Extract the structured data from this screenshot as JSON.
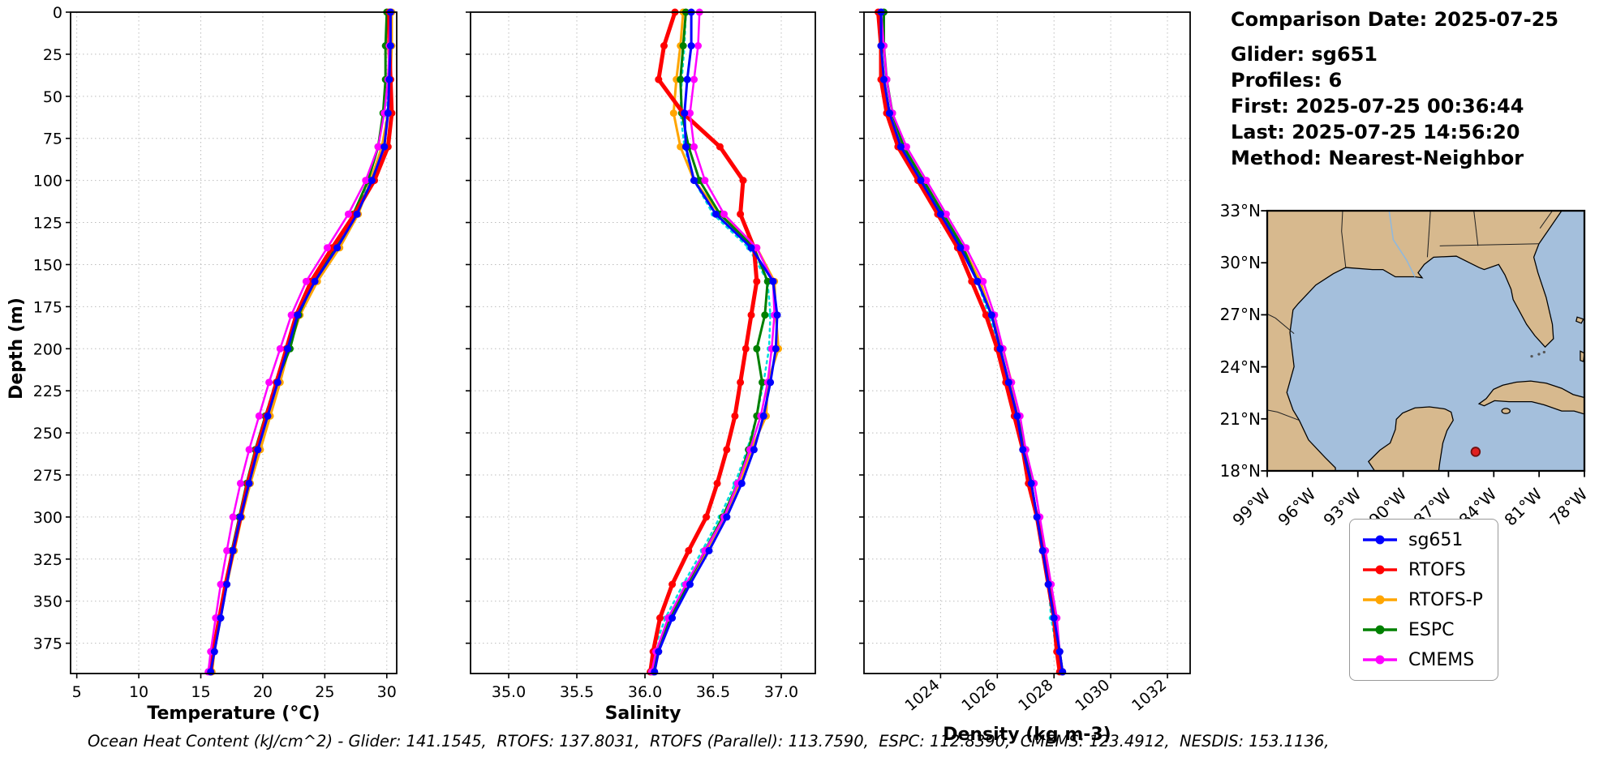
{
  "info": {
    "comparison_date": "Comparison Date: 2025-07-25",
    "glider": "Glider: sg651",
    "profiles": "Profiles: 6",
    "first": "First: 2025-07-25 00:36:44",
    "last": "Last: 2025-07-25 14:56:20",
    "method": "Method: Nearest-Neighbor"
  },
  "footer": "Ocean Heat Content (kJ/cm^2) - Glider: 141.1545,  RTOFS: 137.8031,  RTOFS (Parallel): 113.7590,  ESPC: 112.8390,  CMEMS: 123.4912,  NESDIS: 153.1136,",
  "legend": {
    "items": [
      {
        "label": "sg651",
        "color": "#0000ff"
      },
      {
        "label": "RTOFS",
        "color": "#ff0000"
      },
      {
        "label": "RTOFS-P",
        "color": "#ffa500"
      },
      {
        "label": "ESPC",
        "color": "#008000"
      },
      {
        "label": "CMEMS",
        "color": "#ff00ff"
      }
    ]
  },
  "map": {
    "lat_ticks": [
      "33°N",
      "30°N",
      "27°N",
      "24°N",
      "21°N",
      "18°N"
    ],
    "lon_ticks": [
      "99°W",
      "96°W",
      "93°W",
      "90°W",
      "87°W",
      "84°W",
      "81°W",
      "78°W"
    ],
    "lon_range_w": [
      99,
      78
    ],
    "lat_range_n": [
      18,
      33
    ],
    "marker": {
      "lon_w": 85.2,
      "lat_n": 19.1,
      "color": "#e02020",
      "edge": "#701010"
    },
    "land_color": "#d7b98e",
    "ocean_color": "#a4bfdc"
  },
  "series_styles": {
    "sg651": {
      "color": "#0000ff",
      "width": 3,
      "marker": 4.5
    },
    "RTOFS": {
      "color": "#ff0000",
      "width": 5,
      "marker": 4.5
    },
    "RTOFS-P": {
      "color": "#ffa500",
      "width": 3,
      "marker": 4.5
    },
    "ESPC": {
      "color": "#008000",
      "width": 3,
      "marker": 4.5
    },
    "CMEMS": {
      "color": "#ff00ff",
      "width": 2.5,
      "marker": 4.5
    },
    "NESDIS": {
      "color": "#00dddd",
      "width": 2.5,
      "marker": 3,
      "dash": "3 5"
    }
  },
  "chart_data": [
    {
      "type": "line",
      "title": "",
      "xlabel": "Temperature (°C)",
      "ylabel": "Depth (m)",
      "xlim": [
        4.5,
        30.8
      ],
      "ylim": [
        0,
        393
      ],
      "grid": true,
      "xticks": [
        5,
        10,
        15,
        20,
        25,
        30
      ],
      "xtick_labels": [
        "5",
        "10",
        "15",
        "20",
        "25",
        "30"
      ],
      "yticks": [
        0,
        25,
        50,
        75,
        100,
        125,
        150,
        175,
        200,
        225,
        250,
        275,
        300,
        325,
        350,
        375
      ],
      "depths": [
        0,
        20,
        40,
        60,
        80,
        100,
        120,
        140,
        160,
        180,
        200,
        220,
        240,
        260,
        280,
        300,
        320,
        340,
        360,
        380,
        392
      ],
      "series": [
        {
          "name": "NESDIS",
          "values": [
            30.3,
            30.3,
            30.2,
            30.0,
            29.7,
            28.7,
            27.4,
            25.8,
            24.0,
            22.7,
            21.9,
            21.0,
            20.2,
            19.4,
            18.7,
            18.1,
            17.5,
            17.0,
            16.5,
            16.0,
            15.7
          ]
        },
        {
          "name": "RTOFS-P",
          "values": [
            30.4,
            30.4,
            30.3,
            30.1,
            29.6,
            28.7,
            27.7,
            26.2,
            24.4,
            23.0,
            22.1,
            21.4,
            20.6,
            19.8,
            19.0,
            18.3,
            17.7,
            17.1,
            16.6,
            16.1,
            15.9
          ]
        },
        {
          "name": "ESPC",
          "values": [
            30.0,
            29.9,
            29.9,
            29.7,
            29.3,
            28.5,
            27.3,
            25.8,
            24.1,
            22.9,
            22.2,
            21.1,
            20.2,
            19.4,
            18.7,
            18.1,
            17.5,
            17.0,
            16.5,
            16.0,
            15.8
          ]
        },
        {
          "name": "RTOFS",
          "values": [
            30.2,
            30.2,
            30.3,
            30.4,
            30.1,
            29.0,
            27.4,
            25.6,
            23.9,
            22.7,
            21.9,
            21.1,
            20.3,
            19.5,
            18.8,
            18.2,
            17.6,
            17.0,
            16.5,
            16.0,
            15.8
          ]
        },
        {
          "name": "CMEMS",
          "values": [
            30.3,
            30.2,
            30.1,
            29.8,
            29.3,
            28.3,
            26.9,
            25.2,
            23.5,
            22.3,
            21.4,
            20.5,
            19.7,
            18.9,
            18.2,
            17.6,
            17.1,
            16.6,
            16.2,
            15.8,
            15.6
          ]
        },
        {
          "name": "sg651",
          "values": [
            30.3,
            30.3,
            30.2,
            30.1,
            29.8,
            28.8,
            27.6,
            26.0,
            24.2,
            22.8,
            22.0,
            21.2,
            20.4,
            19.6,
            18.9,
            18.2,
            17.6,
            17.1,
            16.6,
            16.1,
            15.8
          ]
        }
      ]
    },
    {
      "type": "line",
      "title": "",
      "xlabel": "Salinity",
      "ylabel": "",
      "xlim": [
        34.72,
        37.25
      ],
      "ylim": [
        0,
        393
      ],
      "grid": true,
      "xticks": [
        35.0,
        35.5,
        36.0,
        36.5,
        37.0
      ],
      "xtick_labels": [
        "35.0",
        "35.5",
        "36.0",
        "36.5",
        "37.0"
      ],
      "yticks": [
        0,
        25,
        50,
        75,
        100,
        125,
        150,
        175,
        200,
        225,
        250,
        275,
        300,
        325,
        350,
        375
      ],
      "depths": [
        0,
        20,
        40,
        60,
        80,
        100,
        120,
        140,
        160,
        180,
        200,
        220,
        240,
        260,
        280,
        300,
        320,
        340,
        360,
        380,
        392
      ],
      "series": [
        {
          "name": "NESDIS",
          "values": [
            36.3,
            36.29,
            36.27,
            36.26,
            36.29,
            36.36,
            36.5,
            36.76,
            36.9,
            36.92,
            36.91,
            36.87,
            36.82,
            36.75,
            36.66,
            36.55,
            36.42,
            36.28,
            36.15,
            36.06,
            36.03
          ]
        },
        {
          "name": "RTOFS-P",
          "values": [
            36.28,
            36.26,
            36.23,
            36.21,
            36.26,
            36.36,
            36.55,
            36.82,
            36.95,
            36.96,
            36.98,
            36.9,
            36.89,
            36.78,
            36.7,
            36.58,
            36.45,
            36.32,
            36.19,
            36.1,
            36.07
          ]
        },
        {
          "name": "ESPC",
          "values": [
            36.3,
            36.28,
            36.26,
            36.27,
            36.32,
            36.4,
            36.55,
            36.8,
            36.9,
            36.88,
            36.82,
            36.86,
            36.82,
            36.76,
            36.68,
            36.57,
            36.44,
            36.31,
            36.18,
            36.09,
            36.06
          ]
        },
        {
          "name": "RTOFS",
          "values": [
            36.22,
            36.14,
            36.1,
            36.28,
            36.55,
            36.72,
            36.7,
            36.8,
            36.82,
            36.78,
            36.74,
            36.7,
            36.66,
            36.6,
            36.53,
            36.45,
            36.32,
            36.2,
            36.11,
            36.06,
            36.04
          ]
        },
        {
          "name": "CMEMS",
          "values": [
            36.4,
            36.39,
            36.36,
            36.33,
            36.36,
            36.44,
            36.58,
            36.82,
            36.94,
            36.95,
            36.93,
            36.9,
            36.85,
            36.77,
            36.68,
            36.58,
            36.44,
            36.3,
            36.17,
            36.08,
            36.05
          ]
        },
        {
          "name": "sg651",
          "values": [
            36.34,
            36.34,
            36.31,
            36.29,
            36.3,
            36.36,
            36.52,
            36.78,
            36.94,
            36.97,
            36.96,
            36.92,
            36.87,
            36.8,
            36.71,
            36.6,
            36.47,
            36.33,
            36.2,
            36.1,
            36.07
          ]
        }
      ]
    },
    {
      "type": "line",
      "title": "",
      "xlabel": "Density (kg m-3)",
      "ylabel": "",
      "xlim": [
        1021.3,
        1032.8
      ],
      "ylim": [
        0,
        393
      ],
      "grid": true,
      "xticks": [
        1024,
        1026,
        1028,
        1030,
        1032
      ],
      "xtick_labels": [
        "1024",
        "1026",
        "1028",
        "1030",
        "1032"
      ],
      "yticks": [
        0,
        25,
        50,
        75,
        100,
        125,
        150,
        175,
        200,
        225,
        250,
        275,
        300,
        325,
        350,
        375
      ],
      "depths": [
        0,
        20,
        40,
        60,
        80,
        100,
        120,
        140,
        160,
        180,
        200,
        220,
        240,
        260,
        280,
        300,
        320,
        340,
        360,
        380,
        392
      ],
      "series": [
        {
          "name": "NESDIS",
          "values": [
            1021.9,
            1021.9,
            1022.0,
            1022.2,
            1022.6,
            1023.3,
            1024.0,
            1024.7,
            1025.3,
            1025.7,
            1026.1,
            1026.4,
            1026.6,
            1026.9,
            1027.1,
            1027.4,
            1027.6,
            1027.8,
            1027.9,
            1028.1,
            1028.2
          ]
        },
        {
          "name": "RTOFS-P",
          "values": [
            1021.9,
            1021.9,
            1022.0,
            1022.2,
            1022.7,
            1023.4,
            1024.1,
            1024.8,
            1025.4,
            1025.8,
            1026.2,
            1026.5,
            1026.7,
            1027.0,
            1027.2,
            1027.4,
            1027.6,
            1027.8,
            1028.0,
            1028.2,
            1028.3
          ]
        },
        {
          "name": "ESPC",
          "values": [
            1022.0,
            1022.0,
            1022.1,
            1022.3,
            1022.7,
            1023.4,
            1024.1,
            1024.8,
            1025.3,
            1025.8,
            1026.1,
            1026.4,
            1026.7,
            1027.0,
            1027.2,
            1027.4,
            1027.6,
            1027.8,
            1028.0,
            1028.2,
            1028.3
          ]
        },
        {
          "name": "RTOFS",
          "values": [
            1021.8,
            1021.9,
            1021.9,
            1022.1,
            1022.5,
            1023.2,
            1023.9,
            1024.6,
            1025.1,
            1025.6,
            1026.0,
            1026.3,
            1026.6,
            1026.9,
            1027.1,
            1027.4,
            1027.6,
            1027.8,
            1028.0,
            1028.1,
            1028.2
          ]
        },
        {
          "name": "CMEMS",
          "values": [
            1021.9,
            1022.0,
            1022.1,
            1022.3,
            1022.8,
            1023.5,
            1024.2,
            1024.9,
            1025.5,
            1025.9,
            1026.2,
            1026.5,
            1026.8,
            1027.0,
            1027.3,
            1027.5,
            1027.7,
            1027.9,
            1028.1,
            1028.2,
            1028.3
          ]
        },
        {
          "name": "sg651",
          "values": [
            1021.9,
            1021.9,
            1022.0,
            1022.2,
            1022.6,
            1023.3,
            1024.0,
            1024.7,
            1025.3,
            1025.8,
            1026.1,
            1026.4,
            1026.7,
            1026.9,
            1027.2,
            1027.4,
            1027.6,
            1027.8,
            1028.0,
            1028.2,
            1028.3
          ]
        }
      ]
    }
  ]
}
